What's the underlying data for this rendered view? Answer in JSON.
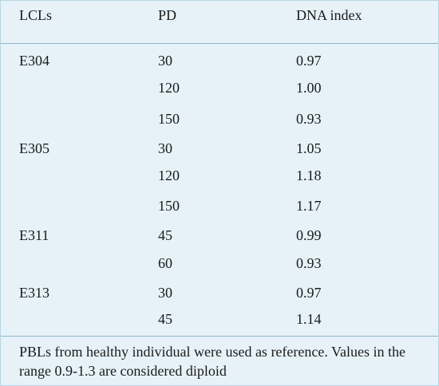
{
  "table": {
    "headers": [
      "LCLs",
      "PD",
      "DNA index"
    ],
    "rows": [
      {
        "lcl": "E304",
        "pd": "30",
        "dna_index": "0.97"
      },
      {
        "lcl": "",
        "pd": "120",
        "dna_index": "1.00"
      },
      {
        "lcl": "",
        "pd": "150",
        "dna_index": "0.93"
      },
      {
        "lcl": "E305",
        "pd": "30",
        "dna_index": "1.05"
      },
      {
        "lcl": "",
        "pd": "120",
        "dna_index": "1.18"
      },
      {
        "lcl": "",
        "pd": "150",
        "dna_index": "1.17"
      },
      {
        "lcl": "E311",
        "pd": "45",
        "dna_index": "0.99"
      },
      {
        "lcl": "",
        "pd": "60",
        "dna_index": "0.93"
      },
      {
        "lcl": "E313",
        "pd": "30",
        "dna_index": "0.97"
      },
      {
        "lcl": "",
        "pd": "45",
        "dna_index": "1.14"
      }
    ],
    "footnote": "PBLs from healthy individual were used as reference. Values in the range 0.9-1.3 are considered diploid"
  }
}
